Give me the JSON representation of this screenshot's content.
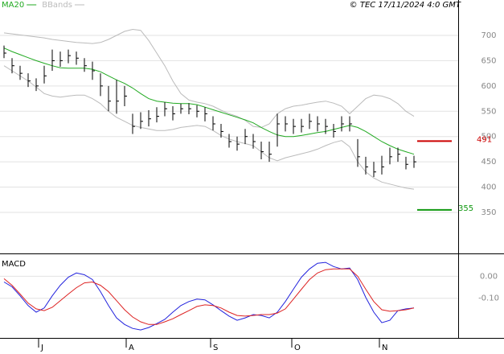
{
  "header": {
    "copyright": "© TEC 17/11/2024 4:0 GMT",
    "legend": [
      {
        "name": "MA20",
        "color": "#22aa22"
      },
      {
        "name": "BBands",
        "color": "#bbbbbb"
      }
    ]
  },
  "chart_data": [
    {
      "type": "ohlc",
      "color": "#000000",
      "xlim": [
        -0.5,
        56.5
      ],
      "ylim": [
        272,
        770
      ],
      "yticks": [
        350,
        400,
        450,
        500,
        550,
        600,
        650,
        700
      ],
      "grid": true,
      "high": [
        680,
        655,
        640,
        625,
        615,
        640,
        672,
        668,
        672,
        668,
        655,
        648,
        625,
        600,
        612,
        600,
        545,
        548,
        552,
        558,
        568,
        560,
        565,
        566,
        562,
        558,
        540,
        525,
        505,
        500,
        515,
        505,
        490,
        490,
        545,
        540,
        535,
        535,
        545,
        540,
        535,
        525,
        540,
        540,
        495,
        460,
        450,
        462,
        478,
        478,
        460,
        462
      ],
      "low": [
        655,
        625,
        612,
        598,
        590,
        605,
        630,
        638,
        645,
        642,
        628,
        612,
        580,
        550,
        545,
        560,
        505,
        515,
        520,
        528,
        540,
        532,
        545,
        544,
        538,
        530,
        512,
        498,
        478,
        472,
        485,
        476,
        455,
        450,
        480,
        510,
        505,
        508,
        515,
        510,
        505,
        498,
        510,
        510,
        440,
        425,
        420,
        425,
        445,
        450,
        435,
        438
      ],
      "close": [
        665,
        640,
        625,
        610,
        600,
        620,
        650,
        650,
        660,
        655,
        640,
        630,
        600,
        570,
        570,
        580,
        520,
        530,
        535,
        540,
        555,
        545,
        555,
        555,
        550,
        545,
        525,
        510,
        490,
        485,
        500,
        490,
        470,
        465,
        525,
        525,
        520,
        520,
        530,
        525,
        520,
        510,
        525,
        525,
        460,
        440,
        430,
        440,
        460,
        465,
        445,
        450
      ],
      "ma": {
        "name": "MA20",
        "color": "#22aa22",
        "values": [
          675,
          668,
          662,
          656,
          650,
          645,
          640,
          636,
          635,
          635,
          635,
          633,
          628,
          620,
          612,
          605,
          596,
          585,
          575,
          570,
          568,
          566,
          565,
          565,
          563,
          558,
          553,
          548,
          543,
          538,
          533,
          527,
          518,
          510,
          503,
          500,
          500,
          502,
          505,
          508,
          510,
          514,
          518,
          522,
          518,
          510,
          500,
          490,
          482,
          475,
          470,
          465
        ]
      },
      "bbands": {
        "name": "BBands",
        "color": "#bbbbbb",
        "upper": [
          705,
          703,
          701,
          699,
          697,
          695,
          692,
          690,
          688,
          686,
          685,
          684,
          686,
          692,
          700,
          708,
          712,
          710,
          690,
          665,
          640,
          610,
          585,
          572,
          568,
          565,
          560,
          552,
          545,
          540,
          532,
          520,
          518,
          525,
          545,
          555,
          560,
          562,
          565,
          568,
          570,
          566,
          560,
          545,
          560,
          575,
          582,
          580,
          575,
          565,
          550,
          540
        ],
        "lower": [
          640,
          630,
          620,
          610,
          598,
          585,
          580,
          578,
          580,
          582,
          582,
          575,
          565,
          550,
          538,
          530,
          522,
          518,
          515,
          512,
          512,
          514,
          518,
          520,
          522,
          520,
          512,
          502,
          495,
          490,
          486,
          482,
          470,
          458,
          452,
          458,
          462,
          466,
          470,
          475,
          482,
          488,
          492,
          480,
          450,
          430,
          418,
          410,
          406,
          402,
          398,
          396
        ]
      },
      "levels": [
        {
          "value": 491,
          "color": "#cc0000"
        },
        {
          "value": 355,
          "color": "#119911"
        }
      ]
    },
    {
      "type": "line",
      "title": "MACD",
      "xlim": [
        -0.5,
        56.5
      ],
      "ylim": [
        -0.28,
        0.1
      ],
      "yticks": [
        {
          "value": 0,
          "label": "0.00"
        },
        {
          "value": -0.1,
          "label": "-0.10"
        }
      ],
      "grid": true,
      "xticks": [
        {
          "value": 4.3,
          "label": "J"
        },
        {
          "value": 15.2,
          "label": "A"
        },
        {
          "value": 25.7,
          "label": "S"
        },
        {
          "value": 35.8,
          "label": "O"
        },
        {
          "value": 46.7,
          "label": "N"
        }
      ],
      "series": [
        {
          "color": "#2222dd",
          "values": [
            -0.026,
            -0.048,
            -0.089,
            -0.133,
            -0.163,
            -0.144,
            -0.089,
            -0.041,
            -0.004,
            0.015,
            0.007,
            -0.015,
            -0.07,
            -0.133,
            -0.189,
            -0.219,
            -0.237,
            -0.244,
            -0.233,
            -0.215,
            -0.196,
            -0.163,
            -0.133,
            -0.115,
            -0.104,
            -0.107,
            -0.13,
            -0.156,
            -0.181,
            -0.2,
            -0.189,
            -0.174,
            -0.178,
            -0.189,
            -0.163,
            -0.115,
            -0.059,
            -0.004,
            0.033,
            0.059,
            0.063,
            0.044,
            0.033,
            0.037,
            -0.015,
            -0.096,
            -0.163,
            -0.211,
            -0.2,
            -0.156,
            -0.148,
            -0.144
          ]
        },
        {
          "color": "#dd2222",
          "values": [
            -0.011,
            -0.041,
            -0.081,
            -0.122,
            -0.148,
            -0.156,
            -0.141,
            -0.111,
            -0.081,
            -0.052,
            -0.03,
            -0.026,
            -0.041,
            -0.07,
            -0.111,
            -0.152,
            -0.185,
            -0.207,
            -0.219,
            -0.219,
            -0.207,
            -0.193,
            -0.174,
            -0.156,
            -0.137,
            -0.13,
            -0.133,
            -0.144,
            -0.163,
            -0.178,
            -0.181,
            -0.178,
            -0.174,
            -0.174,
            -0.167,
            -0.148,
            -0.104,
            -0.059,
            -0.015,
            0.015,
            0.03,
            0.033,
            0.033,
            0.033,
            0,
            -0.059,
            -0.115,
            -0.152,
            -0.159,
            -0.156,
            -0.152,
            -0.144
          ]
        }
      ]
    }
  ]
}
